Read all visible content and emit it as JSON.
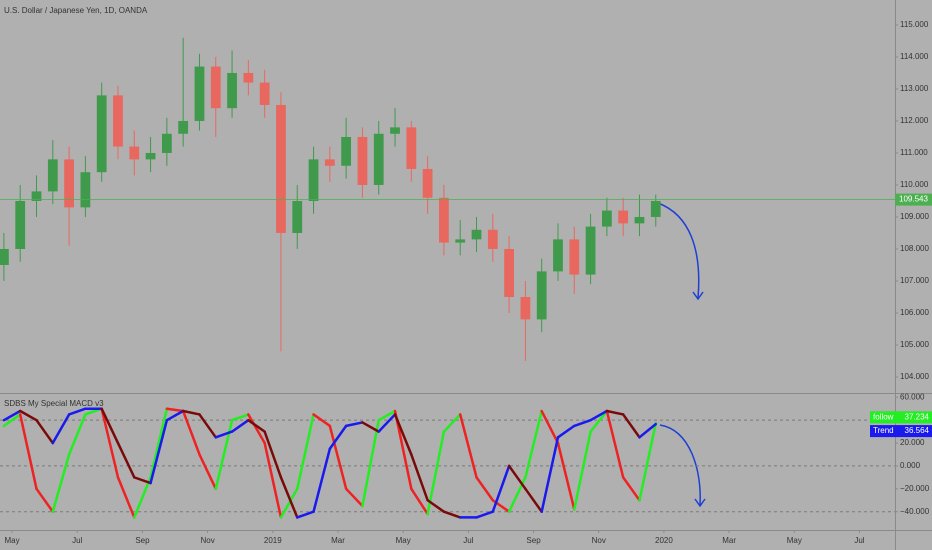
{
  "chart_data": [
    {
      "type": "candlestick",
      "title": "U.S. Dollar / Japanese Yen, 1D, OANDA",
      "x": [
        3.75,
        4.25,
        4.75,
        5.25,
        5.75,
        6.25,
        6.75,
        7.25,
        7.75,
        8.25,
        8.75,
        9.25,
        9.75,
        10.25,
        10.75,
        11.25,
        11.75,
        12.25,
        12.75,
        13.25,
        13.75,
        14.25,
        14.75,
        15.25,
        15.75,
        16.25,
        16.75,
        17.25,
        17.75,
        18.25,
        18.75,
        19.25,
        19.75,
        20.25,
        20.75,
        21.25,
        21.75,
        22.25,
        22.75,
        23.25,
        23.75
      ],
      "open": [
        107.5,
        108.0,
        109.5,
        109.8,
        110.8,
        109.3,
        110.4,
        112.8,
        111.2,
        110.8,
        111.0,
        111.6,
        112.0,
        113.7,
        112.4,
        113.5,
        113.2,
        112.5,
        108.5,
        109.5,
        110.8,
        110.6,
        111.5,
        110.0,
        111.6,
        111.8,
        110.5,
        109.6,
        108.2,
        108.3,
        108.6,
        108.0,
        106.5,
        105.8,
        107.3,
        108.3,
        107.2,
        108.7,
        109.2,
        108.8,
        109.0
      ],
      "high": [
        108.5,
        110.0,
        110.3,
        111.4,
        111.2,
        110.9,
        113.2,
        113.1,
        111.7,
        111.5,
        112.1,
        114.6,
        114.1,
        114.0,
        114.2,
        113.9,
        113.6,
        112.9,
        110.0,
        111.2,
        111.2,
        112.1,
        111.8,
        112.0,
        112.4,
        112.0,
        110.9,
        110.0,
        108.9,
        109.0,
        109.1,
        108.4,
        107.0,
        107.7,
        108.8,
        108.7,
        109.1,
        109.6,
        109.6,
        109.7,
        109.7
      ],
      "low": [
        107.0,
        107.6,
        109.0,
        109.4,
        108.1,
        109.0,
        110.1,
        110.8,
        110.3,
        110.4,
        110.6,
        111.2,
        111.7,
        111.5,
        112.1,
        112.8,
        112.1,
        104.8,
        108.0,
        109.1,
        110.1,
        110.2,
        109.6,
        109.7,
        111.2,
        110.1,
        109.1,
        107.8,
        107.8,
        107.9,
        107.6,
        106.0,
        104.5,
        105.4,
        107.0,
        106.6,
        106.9,
        108.4,
        108.4,
        108.4,
        108.7
      ],
      "close": [
        108.0,
        109.5,
        109.8,
        110.8,
        109.3,
        110.4,
        112.8,
        111.2,
        110.8,
        111.0,
        111.6,
        112.0,
        113.7,
        112.4,
        113.5,
        113.2,
        112.5,
        108.5,
        109.5,
        110.8,
        110.6,
        111.5,
        110.0,
        111.6,
        111.8,
        110.5,
        109.6,
        108.2,
        108.3,
        108.6,
        108.0,
        106.5,
        105.8,
        107.3,
        108.3,
        107.2,
        108.7,
        109.2,
        108.8,
        109.0,
        109.5
      ],
      "up_color": "#3f9b4b",
      "down_color": "#e8685f",
      "last_price": {
        "value": 109.543,
        "label": "109.543"
      },
      "last_price_color": "#4caf50",
      "xlim": [
        3.63,
        31.09
      ],
      "ylim": [
        103.5,
        115.78
      ],
      "yticks": [
        {
          "value": 104,
          "label": "104.000"
        },
        {
          "value": 105,
          "label": "105.000"
        },
        {
          "value": 106,
          "label": "106.000"
        },
        {
          "value": 107,
          "label": "107.000"
        },
        {
          "value": 108,
          "label": "108.000"
        },
        {
          "value": 109,
          "label": "109.000"
        },
        {
          "value": 110,
          "label": "110.000"
        },
        {
          "value": 111,
          "label": "111.000"
        },
        {
          "value": 112,
          "label": "112.000"
        },
        {
          "value": 113,
          "label": "113.000"
        },
        {
          "value": 114,
          "label": "114.000"
        },
        {
          "value": 115,
          "label": "115.000"
        }
      ]
    },
    {
      "type": "line",
      "title": "SDBS My Special MACD v3",
      "x": [
        3.75,
        4.25,
        4.75,
        5.25,
        5.75,
        6.25,
        6.75,
        7.25,
        7.75,
        8.25,
        8.75,
        9.25,
        9.75,
        10.25,
        10.75,
        11.25,
        11.75,
        12.25,
        12.75,
        13.25,
        13.75,
        14.25,
        14.75,
        15.25,
        15.75,
        16.25,
        16.75,
        17.25,
        17.75,
        18.25,
        18.75,
        19.25,
        19.75,
        20.25,
        20.75,
        21.25,
        21.75,
        22.25,
        22.75,
        23.25,
        23.75
      ],
      "series": [
        {
          "name": "follow",
          "color": "#22ee22",
          "down_color": "#ee2222",
          "values": [
            35,
            45,
            -20,
            -40,
            10,
            45,
            50,
            -10,
            -45,
            -10,
            50,
            48,
            10,
            -20,
            40,
            45,
            20,
            -45,
            -20,
            45,
            35,
            -20,
            -35,
            40,
            48,
            -20,
            -42,
            30,
            45,
            -10,
            -30,
            -40,
            -10,
            48,
            20,
            -38,
            30,
            48,
            -10,
            -30,
            37.234
          ],
          "value_label": "37.234"
        },
        {
          "name": "Trend",
          "color": "#1a1aee",
          "down_color": "#7a0a0a",
          "values": [
            40,
            48,
            40,
            20,
            45,
            50,
            50,
            20,
            -10,
            -15,
            40,
            48,
            45,
            25,
            30,
            40,
            30,
            -10,
            -45,
            -40,
            15,
            35,
            38,
            30,
            45,
            10,
            -30,
            -40,
            -45,
            -45,
            -40,
            0,
            -20,
            -40,
            25,
            35,
            40,
            48,
            45,
            25,
            36.564
          ],
          "value_label": "36.564"
        }
      ],
      "xlim": [
        3.63,
        31.09
      ],
      "ylim": [
        -56,
        62
      ],
      "xticks": [
        {
          "value": 4,
          "label": "May"
        },
        {
          "value": 6,
          "label": "Jul"
        },
        {
          "value": 8,
          "label": "Sep"
        },
        {
          "value": 10,
          "label": "Nov"
        },
        {
          "value": 12,
          "label": "2019"
        },
        {
          "value": 14,
          "label": "Mar"
        },
        {
          "value": 16,
          "label": "May"
        },
        {
          "value": 18,
          "label": "Jul"
        },
        {
          "value": 20,
          "label": "Sep"
        },
        {
          "value": 22,
          "label": "Nov"
        },
        {
          "value": 24,
          "label": "2020"
        },
        {
          "value": 26,
          "label": "Mar"
        },
        {
          "value": 28,
          "label": "May"
        },
        {
          "value": 30,
          "label": "Jul"
        }
      ],
      "yticks": [
        {
          "value": -40,
          "label": "−40.000"
        },
        {
          "value": -20,
          "label": "−20.000"
        },
        {
          "value": 0,
          "label": "0.000"
        },
        {
          "value": 20,
          "label": "20.000"
        },
        {
          "value": 40,
          "label": "40.000"
        },
        {
          "value": 60,
          "label": "60.000"
        }
      ],
      "dashed_levels": [
        -40,
        0,
        40
      ]
    }
  ]
}
